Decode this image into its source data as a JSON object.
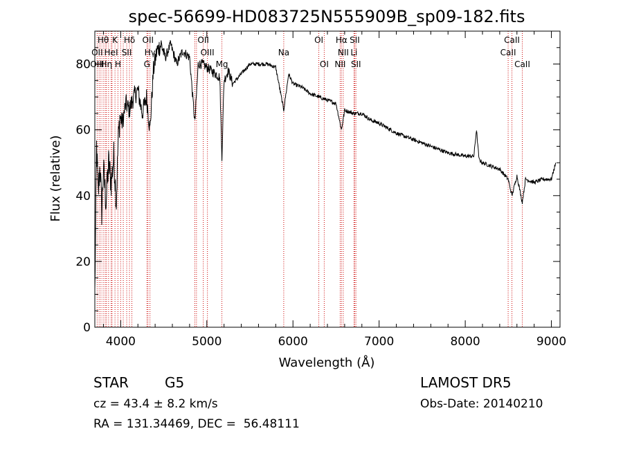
{
  "chart_data": {
    "type": "line",
    "title": "spec-56699-HD083725N555909B_sp09-182.fits",
    "xlabel": "Wavelength (Å)",
    "ylabel": "Flux (relative)",
    "xlim": [
      3700,
      9100
    ],
    "ylim": [
      0,
      90
    ],
    "xticks": [
      4000,
      5000,
      6000,
      7000,
      8000,
      9000
    ],
    "yticks": [
      0,
      20,
      40,
      60,
      80
    ],
    "grid": false,
    "line_color": "#000000",
    "marker_color": "#cc0000",
    "series": [
      {
        "x": [
          3700,
          3720,
          3740,
          3760,
          3780,
          3800,
          3830,
          3860,
          3890,
          3920,
          3950,
          3970,
          3990,
          4020,
          4060,
          4100,
          4150,
          4200,
          4250,
          4300,
          4340,
          4380,
          4420,
          4470,
          4520,
          4580,
          4650,
          4720,
          4800,
          4861,
          4900,
          4950,
          5000,
          5050,
          5100,
          5150,
          5175,
          5200,
          5250,
          5300,
          5400,
          5500,
          5600,
          5700,
          5800,
          5893,
          5950,
          6000,
          6100,
          6200,
          6300,
          6400,
          6500,
          6563,
          6600,
          6700,
          6800,
          6900,
          7000,
          7200,
          7400,
          7600,
          7800,
          8000,
          8100,
          8130,
          8160,
          8200,
          8300,
          8400,
          8498,
          8542,
          8600,
          8662,
          8700,
          8800,
          8900,
          9000,
          9050
        ],
        "y": [
          10,
          55,
          40,
          50,
          35,
          48,
          38,
          50,
          44,
          52,
          38,
          56,
          64,
          62,
          68,
          66,
          70,
          72,
          65,
          70,
          60,
          78,
          84,
          86,
          82,
          86,
          80,
          84,
          82,
          62,
          80,
          80,
          79,
          78,
          77,
          76,
          52,
          75,
          78,
          74,
          77,
          80,
          80,
          80,
          79,
          66,
          77,
          74,
          73,
          71,
          70,
          69,
          68,
          60,
          66,
          65,
          65,
          63,
          62,
          59,
          57,
          55,
          53,
          52,
          52,
          60,
          51,
          50,
          49,
          48,
          45,
          40,
          46,
          38,
          45,
          44,
          45,
          45,
          50
        ]
      }
    ],
    "line_markers": [
      {
        "label": "Hθ",
        "x": 3797,
        "row": 0
      },
      {
        "label": "K",
        "x": 3934,
        "row": 0
      },
      {
        "label": "Hδ",
        "x": 4102,
        "row": 0
      },
      {
        "label": "OII",
        "x": 4317,
        "row": 0
      },
      {
        "label": "OII",
        "x": 4959,
        "row": 0
      },
      {
        "label": "OI",
        "x": 6300,
        "row": 0
      },
      {
        "label": "Hα",
        "x": 6563,
        "row": 0
      },
      {
        "label": "SII",
        "x": 6717,
        "row": 0
      },
      {
        "label": "CaII",
        "x": 8542,
        "row": 0
      },
      {
        "label": "OII",
        "x": 3727,
        "row": 1
      },
      {
        "label": "HeI",
        "x": 3889,
        "row": 1
      },
      {
        "label": "SII",
        "x": 4070,
        "row": 1
      },
      {
        "label": "Hγ",
        "x": 4340,
        "row": 1
      },
      {
        "label": "OIII",
        "x": 5007,
        "row": 1
      },
      {
        "label": "Na",
        "x": 5893,
        "row": 1
      },
      {
        "label": "NII",
        "x": 6584,
        "row": 1
      },
      {
        "label": "Li",
        "x": 6708,
        "row": 1
      },
      {
        "label": "CaII",
        "x": 8498,
        "row": 1
      },
      {
        "label": "OIII",
        "x": 3727,
        "row": 2
      },
      {
        "label": "Hη",
        "x": 3835,
        "row": 2
      },
      {
        "label": "H",
        "x": 3968,
        "row": 2
      },
      {
        "label": "G",
        "x": 4305,
        "row": 2
      },
      {
        "label": "Mg",
        "x": 5175,
        "row": 2
      },
      {
        "label": "OI",
        "x": 6363,
        "row": 2
      },
      {
        "label": "NII",
        "x": 6548,
        "row": 2
      },
      {
        "label": "SII",
        "x": 6731,
        "row": 2
      },
      {
        "label": "CaII",
        "x": 8662,
        "row": 2
      }
    ],
    "extra_lines": [
      3750,
      3771,
      3820,
      3860,
      3900,
      4000,
      4030,
      4130,
      4861,
      4880
    ]
  },
  "info": {
    "obj_class": "STAR",
    "subclass": "G5",
    "survey": "LAMOST DR5",
    "cz": "cz = 43.4 ± 8.2 km/s",
    "obs_date": "Obs-Date: 20140210",
    "radec": "RA = 131.34469, DEC =  56.48111"
  }
}
